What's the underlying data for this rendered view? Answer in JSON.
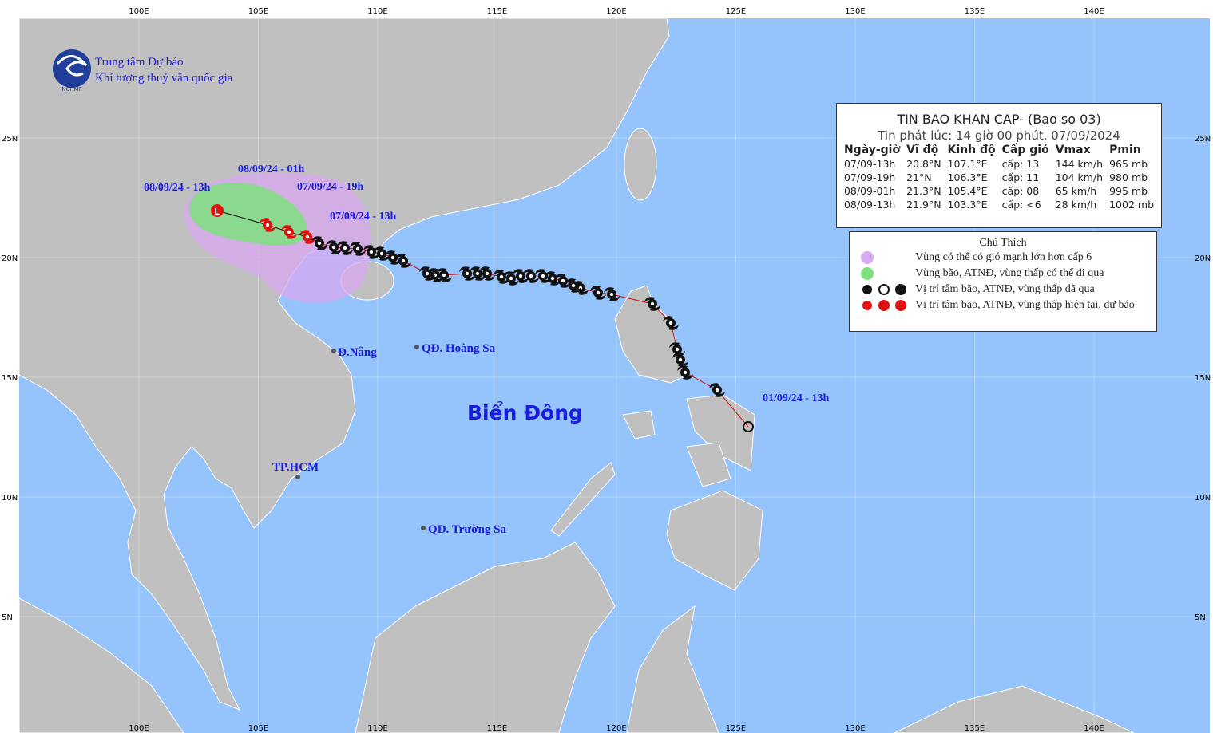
{
  "header": {
    "org_line1": "Trung tâm Dự báo",
    "org_line2": "Khí tượng thuỷ văn quốc gia",
    "logo_text": "NCHMF"
  },
  "axes": {
    "lon_labels": [
      "100E",
      "105E",
      "110E",
      "115E",
      "120E",
      "125E",
      "130E",
      "135E",
      "140E"
    ],
    "lat_labels": [
      "25N",
      "20N",
      "15N",
      "10N",
      "5N"
    ]
  },
  "bulletin": {
    "title": "TIN BAO KHAN CAP- (Bao so 03)",
    "issued": "Tin phát lúc: 14 giờ 00 phút, 07/09/2024",
    "columns": [
      "Ngày-giờ",
      "Vĩ độ",
      "Kinh độ",
      "Cấp gió",
      "Vmax",
      "Pmin"
    ],
    "rows": [
      [
        "07/09-13h",
        "20.8°N",
        "107.1°E",
        "cấp: 13",
        "144 km/h",
        "965 mb"
      ],
      [
        "07/09-19h",
        "21°N",
        "106.3°E",
        "cấp: 11",
        "104 km/h",
        "980 mb"
      ],
      [
        "08/09-01h",
        "21.3°N",
        "105.4°E",
        "cấp: 08",
        "65 km/h",
        "995 mb"
      ],
      [
        "08/09-13h",
        "21.9°N",
        "103.3°E",
        "cấp: <6",
        "28 km/h",
        "1002 mb"
      ]
    ]
  },
  "legend": {
    "title": "Chú Thích",
    "items": [
      "Vùng có thể có gió mạnh lớn hơn cấp 6",
      "Vùng bão, ATNĐ, vùng thấp có thể đi qua",
      "Vị trí tâm bão, ATNĐ, vùng thấp đã qua",
      "Vị trí tâm bão, ATNĐ, vùng thấp hiện tại, dự báo"
    ]
  },
  "places": [
    "Đ.Nẵng",
    "QĐ. Hoàng Sa",
    "TP.HCM",
    "QĐ. Trường Sa"
  ],
  "track_labels": [
    "08/09/24 - 13h",
    "08/09/24 - 01h",
    "07/09/24 - 19h",
    "07/09/24 - 13h",
    "01/09/24 - 13h"
  ],
  "sea_label": "Biển Đông"
}
